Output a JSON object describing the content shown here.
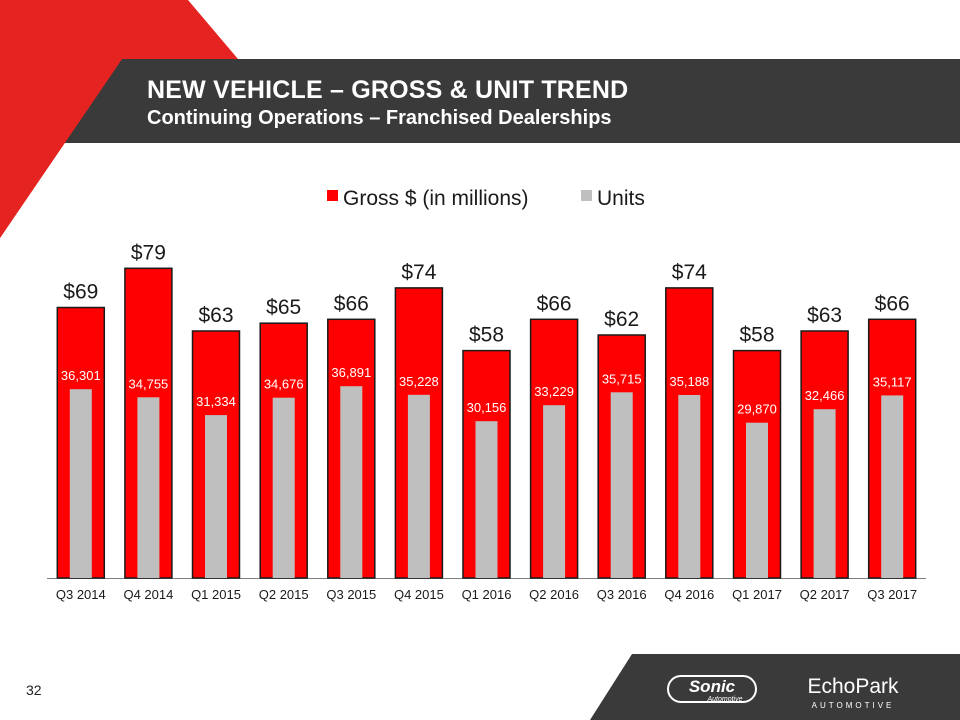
{
  "header": {
    "title": "NEW VEHICLE – GROSS & UNIT TREND",
    "subtitle": "Continuing Operations – Franchised Dealerships"
  },
  "footer": {
    "page_number": "32",
    "logos": {
      "sonic": {
        "name": "Sonic",
        "sub": "Automotive"
      },
      "echopark": {
        "name": "EchoPark",
        "sub": "AUTOMOTIVE"
      }
    }
  },
  "colors": {
    "header_bar": "#3a3a3a",
    "accent_red": "#e52320",
    "gross_bar": "#ff0000",
    "units_bar": "#bfbfbf",
    "units_label": "#ffffff"
  },
  "chart_data": {
    "type": "bar",
    "title": "",
    "categories": [
      "Q3 2014",
      "Q4 2014",
      "Q1 2015",
      "Q2 2015",
      "Q3 2015",
      "Q4 2015",
      "Q1 2016",
      "Q2 2016",
      "Q3 2016",
      "Q4 2016",
      "Q1 2017",
      "Q2 2017",
      "Q3 2017"
    ],
    "series": [
      {
        "name": "Gross $ (in millions)",
        "values": [
          69,
          79,
          63,
          65,
          66,
          74,
          58,
          66,
          62,
          74,
          58,
          63,
          66
        ],
        "labels": [
          "$69",
          "$79",
          "$63",
          "$65",
          "$66",
          "$74",
          "$58",
          "$66",
          "$62",
          "$74",
          "$58",
          "$63",
          "$66"
        ]
      },
      {
        "name": "Units",
        "values": [
          36301,
          34755,
          31334,
          34676,
          36891,
          35228,
          30156,
          33229,
          35715,
          35188,
          29870,
          32466,
          35117
        ],
        "labels": [
          "36,301",
          "34,755",
          "31,334",
          "34,676",
          "36,891",
          "35,228",
          "30,156",
          "33,229",
          "35,715",
          "35,188",
          "29,870",
          "32,466",
          "35,117"
        ]
      }
    ],
    "legend": "top",
    "grid": false,
    "gross_ylim": [
      0,
      85
    ],
    "units_ylim": [
      0,
      43500
    ]
  }
}
